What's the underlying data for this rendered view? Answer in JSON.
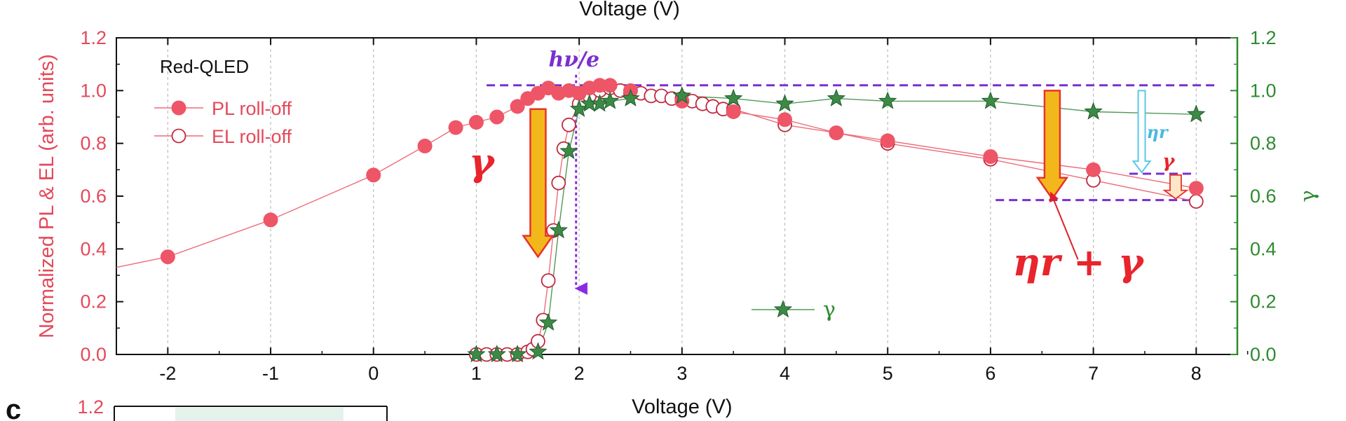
{
  "chart_data": {
    "type": "scatter",
    "top_title_partial": "Voltage (V)",
    "xlabel": "Voltage (V)",
    "ylabel_left": "Normalized PL & EL (arb. units)",
    "ylabel_right": "γ",
    "xlim": [
      -2.5,
      8.4
    ],
    "ylim_left": [
      0,
      1.2
    ],
    "ylim_right": [
      0,
      1.2
    ],
    "x_ticks": [
      -2,
      -1,
      0,
      1,
      2,
      3,
      4,
      5,
      6,
      7,
      8
    ],
    "y_ticks_left": [
      "0.0",
      "0.2",
      "0.4",
      "0.6",
      "0.8",
      "1.0",
      "1.2"
    ],
    "y_ticks_right": [
      "0.0",
      "0.2",
      "0.4",
      "0.6",
      "0.8",
      "1.0",
      "1.2"
    ],
    "device_label": "Red-QLED",
    "series": [
      {
        "name": "PL roll-off",
        "axis": "left",
        "marker": "filled-circle",
        "color": "#ee5567",
        "x": [
          -2.5,
          -2,
          -1,
          0,
          0.5,
          0.8,
          1.0,
          1.2,
          1.4,
          1.5,
          1.6,
          1.7,
          1.8,
          1.9,
          2.0,
          2.1,
          2.2,
          2.3,
          2.5,
          3.0,
          3.5,
          4.0,
          4.5,
          5.0,
          6.0,
          7.0,
          8.0
        ],
        "y": [
          0.33,
          0.37,
          0.51,
          0.68,
          0.79,
          0.86,
          0.88,
          0.9,
          0.94,
          0.97,
          0.99,
          1.01,
          0.99,
          1.0,
          0.99,
          1.01,
          1.02,
          1.02,
          1.0,
          0.96,
          0.92,
          0.89,
          0.84,
          0.81,
          0.75,
          0.7,
          0.63
        ]
      },
      {
        "name": "EL roll-off",
        "axis": "left",
        "marker": "open-circle",
        "color": "#c0283e",
        "x": [
          1.0,
          1.1,
          1.2,
          1.3,
          1.4,
          1.5,
          1.55,
          1.6,
          1.65,
          1.7,
          1.75,
          1.8,
          1.85,
          1.9,
          2.0,
          2.1,
          2.2,
          2.3,
          2.4,
          2.5,
          2.6,
          2.7,
          2.8,
          2.9,
          3.0,
          3.1,
          3.2,
          3.3,
          3.4,
          3.5,
          4.0,
          4.5,
          5.0,
          6.0,
          7.0,
          8.0
        ],
        "y": [
          0.0,
          0.0,
          0.0,
          0.0,
          0.0,
          0.01,
          0.02,
          0.05,
          0.13,
          0.28,
          0.47,
          0.65,
          0.78,
          0.87,
          0.95,
          0.98,
          1.0,
          1.01,
          1.0,
          0.99,
          0.99,
          0.98,
          0.98,
          0.97,
          0.97,
          0.96,
          0.95,
          0.94,
          0.93,
          0.93,
          0.87,
          0.84,
          0.8,
          0.74,
          0.66,
          0.58
        ]
      },
      {
        "name": "γ",
        "axis": "right",
        "marker": "star",
        "color": "#3d8a47",
        "x": [
          1.0,
          1.2,
          1.4,
          1.6,
          1.7,
          1.8,
          1.9,
          2.0,
          2.1,
          2.2,
          2.3,
          2.5,
          3.0,
          3.5,
          4.0,
          4.5,
          5.0,
          6.0,
          7.0,
          8.0
        ],
        "y": [
          0.0,
          0.0,
          0.0,
          0.01,
          0.12,
          0.47,
          0.77,
          0.93,
          0.95,
          0.95,
          0.96,
          0.97,
          0.98,
          0.97,
          0.95,
          0.97,
          0.96,
          0.96,
          0.92,
          0.91
        ]
      }
    ],
    "annotations": {
      "hv_e": "hν/e",
      "gamma_big": "γ",
      "eta_r_small": "ηr",
      "gamma_small": "γ",
      "eta_plus_gamma": "ηr + γ"
    }
  },
  "panel_c": {
    "label": "c",
    "y_tick_top": "1.2"
  }
}
